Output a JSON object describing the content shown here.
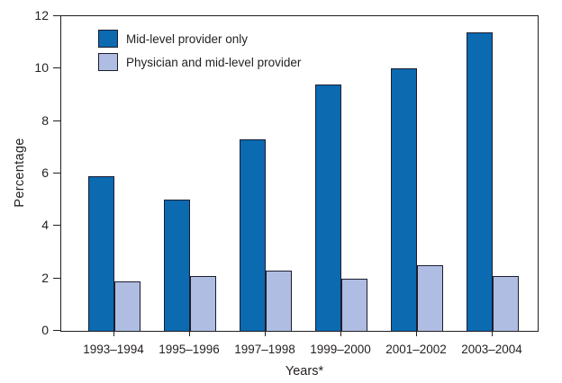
{
  "chart_data": {
    "type": "bar",
    "categories": [
      "1993–1994",
      "1995–1996",
      "1997–1998",
      "1999–2000",
      "2001–2002",
      "2003–2004"
    ],
    "series": [
      {
        "name": "Mid-level provider only",
        "color": "#0b6ab0",
        "values": [
          5.9,
          5.0,
          7.3,
          9.4,
          10.0,
          11.4
        ]
      },
      {
        "name": "Physician and mid-level provider",
        "color": "#aebde1",
        "values": [
          1.9,
          2.1,
          2.3,
          2.0,
          2.5,
          2.1
        ]
      }
    ],
    "xlabel": "Years*",
    "ylabel": "Percentage",
    "ylim": [
      0,
      12
    ],
    "yticks": [
      0,
      2,
      4,
      6,
      8,
      10,
      12
    ],
    "grid": false,
    "legend_position": "top-left inside plot",
    "axis_color": "#231f20",
    "background_color": "#ffffff"
  }
}
